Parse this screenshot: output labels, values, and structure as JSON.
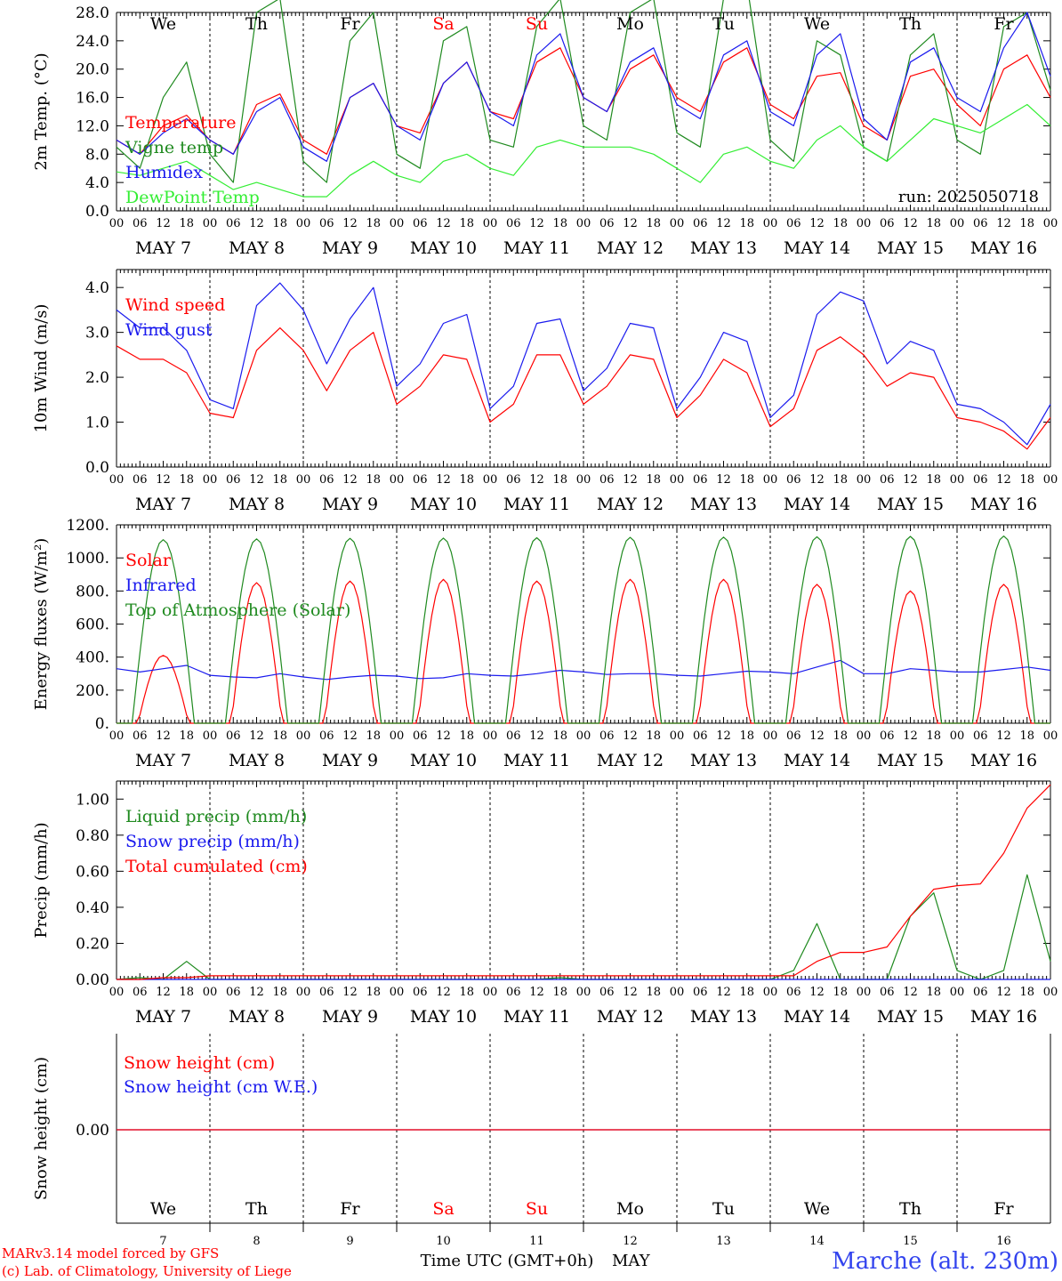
{
  "colors": {
    "red": "#ff0000",
    "green": "#1f8a1f",
    "blue": "#1a1aee",
    "lightgreen": "#33ee33",
    "axis": "#000000"
  },
  "run_label": "run: 2025050718",
  "x_axis": {
    "hour_labels": [
      "00",
      "06",
      "12",
      "18"
    ],
    "dates": [
      "MAY  7",
      "MAY  8",
      "MAY  9",
      "MAY 10",
      "MAY 11",
      "MAY 12",
      "MAY 13",
      "MAY 14",
      "MAY 15",
      "MAY 16"
    ],
    "weekdays": [
      "We",
      "Th",
      "Fr",
      "Sa",
      "Su",
      "Mo",
      "Tu",
      "We",
      "Th",
      "Fr"
    ],
    "weekend_color": [
      "#000",
      "#000",
      "#000",
      "#ff0000",
      "#ff0000",
      "#000",
      "#000",
      "#000",
      "#000",
      "#000"
    ],
    "day_numbers": [
      "7",
      "8",
      "9",
      "10",
      "11",
      "12",
      "13",
      "14",
      "15",
      "16"
    ],
    "title": "Time UTC (GMT+0h)",
    "month": "MAY"
  },
  "footer": {
    "model": "MARv3.14 model forced by GFS",
    "lab": "(c) Lab. of Climatology, University of Liege",
    "station": "Marche (alt. 230m)"
  },
  "chart_data": [
    {
      "type": "line",
      "ylabel": "2m Temp. (°C)",
      "ylim": [
        0,
        28
      ],
      "yticks": [
        "0.0",
        "4.0",
        "8.0",
        "12.0",
        "16.0",
        "20.0",
        "24.0",
        "28.0"
      ],
      "x_hours_from_may7_00": [
        0,
        6,
        12,
        18,
        24,
        30,
        36,
        42,
        48,
        54,
        60,
        66,
        72,
        78,
        84,
        90,
        96,
        102,
        108,
        114,
        120,
        126,
        132,
        138,
        144,
        150,
        156,
        162,
        168,
        174,
        180,
        186,
        192,
        198,
        204,
        210,
        216,
        222,
        228,
        234,
        240
      ],
      "series": [
        {
          "name": "Temperature",
          "color": "red",
          "values": [
            10,
            8,
            12,
            13.5,
            10,
            8,
            15,
            16.5,
            10,
            8,
            16,
            18,
            12,
            11,
            18,
            21,
            14,
            13,
            21,
            23,
            16,
            14,
            20,
            22,
            16,
            14,
            21,
            23,
            15,
            13,
            19,
            19.5,
            12,
            10,
            19,
            20,
            15,
            12,
            20,
            22,
            16
          ]
        },
        {
          "name": "Vigne temp",
          "color": "green",
          "values": [
            9,
            6,
            16,
            21,
            8,
            4,
            28,
            30,
            7,
            4,
            24,
            28,
            8,
            6,
            24,
            26,
            10,
            9,
            26,
            30,
            12,
            10,
            28,
            30,
            11,
            9,
            30,
            32,
            10,
            7,
            24,
            22,
            9,
            7,
            22,
            25,
            10,
            8,
            26,
            28,
            17
          ]
        },
        {
          "name": "Humidex",
          "color": "blue",
          "values": [
            10,
            8,
            11,
            13,
            10,
            8,
            14,
            16,
            9,
            7,
            16,
            18,
            12,
            10,
            18,
            21,
            14,
            12,
            22,
            25,
            16,
            14,
            21,
            23,
            15,
            13,
            22,
            24,
            14,
            12,
            22,
            25,
            13,
            10,
            21,
            23,
            16,
            14,
            23,
            28,
            19
          ]
        },
        {
          "name": "DewPoint Temp",
          "color": "lightgreen",
          "values": [
            5.5,
            5,
            6,
            7,
            5,
            3,
            4,
            3,
            2,
            2,
            5,
            7,
            5,
            4,
            7,
            8,
            6,
            5,
            9,
            10,
            9,
            9,
            9,
            8,
            6,
            4,
            8,
            9,
            7,
            6,
            10,
            12,
            9,
            7,
            10,
            13,
            12,
            11,
            13,
            15,
            12
          ]
        }
      ]
    },
    {
      "type": "line",
      "ylabel": "10m Wind (m/s)",
      "ylim": [
        0,
        4.4
      ],
      "yticks": [
        "0.0",
        "1.0",
        "2.0",
        "3.0",
        "4.0"
      ],
      "x_hours_from_may7_00": [
        0,
        6,
        12,
        18,
        24,
        30,
        36,
        42,
        48,
        54,
        60,
        66,
        72,
        78,
        84,
        90,
        96,
        102,
        108,
        114,
        120,
        126,
        132,
        138,
        144,
        150,
        156,
        162,
        168,
        174,
        180,
        186,
        192,
        198,
        204,
        210,
        216,
        222,
        228,
        234,
        240
      ],
      "series": [
        {
          "name": "Wind speed",
          "color": "red",
          "values": [
            2.7,
            2.4,
            2.4,
            2.1,
            1.2,
            1.1,
            2.6,
            3.1,
            2.6,
            1.7,
            2.6,
            3.0,
            1.4,
            1.8,
            2.5,
            2.4,
            1.0,
            1.4,
            2.5,
            2.5,
            1.4,
            1.8,
            2.5,
            2.4,
            1.1,
            1.6,
            2.4,
            2.1,
            0.9,
            1.3,
            2.6,
            2.9,
            2.5,
            1.8,
            2.1,
            2.0,
            1.1,
            1.0,
            0.8,
            0.4,
            1.1
          ]
        },
        {
          "name": "Wind gust",
          "color": "blue",
          "values": [
            3.5,
            3.1,
            3.1,
            2.6,
            1.5,
            1.3,
            3.6,
            4.1,
            3.5,
            2.3,
            3.3,
            4.0,
            1.8,
            2.3,
            3.2,
            3.4,
            1.3,
            1.8,
            3.2,
            3.3,
            1.7,
            2.2,
            3.2,
            3.1,
            1.3,
            2.0,
            3.0,
            2.8,
            1.1,
            1.6,
            3.4,
            3.9,
            3.7,
            2.3,
            2.8,
            2.6,
            1.4,
            1.3,
            1.0,
            0.5,
            1.4
          ]
        }
      ]
    },
    {
      "type": "line",
      "ylabel": "Energy fluxes (W/m²)",
      "ylim": [
        0,
        1200
      ],
      "yticks": [
        "0.",
        "200.",
        "400.",
        "600.",
        "800.",
        "1000.",
        "1200."
      ],
      "x_hours_from_may7_00": [
        0,
        6,
        12,
        18,
        24,
        30,
        36,
        42,
        48,
        54,
        60,
        66,
        72,
        78,
        84,
        90,
        96,
        102,
        108,
        114,
        120,
        126,
        132,
        138,
        144,
        150,
        156,
        162,
        168,
        174,
        180,
        186,
        192,
        198,
        204,
        210,
        216,
        222,
        228,
        234,
        240
      ],
      "series": [
        {
          "name": "Solar",
          "color": "red",
          "peaks": [
            410,
            850,
            860,
            870,
            860,
            870,
            870,
            840,
            800,
            840
          ]
        },
        {
          "name": "Infrared",
          "color": "blue",
          "values": [
            330,
            310,
            330,
            350,
            290,
            280,
            275,
            300,
            280,
            265,
            280,
            290,
            285,
            270,
            275,
            300,
            290,
            285,
            300,
            320,
            310,
            295,
            300,
            300,
            290,
            285,
            300,
            315,
            310,
            300,
            340,
            380,
            300,
            300,
            330,
            320,
            310,
            310,
            325,
            340,
            320
          ]
        },
        {
          "name": "Top of Atmosphere (Solar)",
          "color": "green",
          "peaks": [
            1110,
            1115,
            1118,
            1120,
            1122,
            1124,
            1126,
            1128,
            1130,
            1132
          ]
        }
      ]
    },
    {
      "type": "line",
      "ylabel": "Precip (mm/h)",
      "ylim": [
        0,
        1.1
      ],
      "yticks": [
        "0.00",
        "0.20",
        "0.40",
        "0.60",
        "0.80",
        "1.00"
      ],
      "x_hours_from_may7_00": [
        0,
        6,
        12,
        18,
        24,
        30,
        36,
        42,
        48,
        54,
        60,
        66,
        72,
        78,
        84,
        90,
        96,
        102,
        108,
        114,
        120,
        126,
        132,
        138,
        144,
        150,
        156,
        162,
        168,
        174,
        180,
        186,
        192,
        198,
        204,
        210,
        216,
        222,
        228,
        234,
        240
      ],
      "series": [
        {
          "name": "Liquid precip (mm/h)",
          "color": "green",
          "values": [
            0,
            0.01,
            0,
            0.1,
            0,
            0,
            0,
            0,
            0,
            0,
            0,
            0,
            0,
            0,
            0,
            0,
            0,
            0,
            0,
            0.01,
            0,
            0,
            0,
            0,
            0,
            0,
            0,
            0,
            0,
            0.05,
            0.31,
            0,
            0,
            0,
            0.35,
            0.48,
            0.05,
            0,
            0.05,
            0.58,
            0.1
          ]
        },
        {
          "name": "Snow precip (mm/h)",
          "color": "blue",
          "values": [
            0,
            0,
            0,
            0,
            0,
            0,
            0,
            0,
            0,
            0,
            0,
            0,
            0,
            0,
            0,
            0,
            0,
            0,
            0,
            0,
            0,
            0,
            0,
            0,
            0,
            0,
            0,
            0,
            0,
            0,
            0,
            0,
            0,
            0,
            0,
            0,
            0,
            0,
            0,
            0,
            0
          ]
        },
        {
          "name": "Total cumulated (cm)",
          "color": "red",
          "values": [
            0,
            0,
            0.01,
            0.01,
            0.02,
            0.02,
            0.02,
            0.02,
            0.02,
            0.02,
            0.02,
            0.02,
            0.02,
            0.02,
            0.02,
            0.02,
            0.02,
            0.02,
            0.02,
            0.02,
            0.02,
            0.02,
            0.02,
            0.02,
            0.02,
            0.02,
            0.02,
            0.02,
            0.02,
            0.02,
            0.1,
            0.15,
            0.15,
            0.18,
            0.35,
            0.5,
            0.52,
            0.53,
            0.7,
            0.95,
            1.08
          ]
        }
      ]
    },
    {
      "type": "line",
      "ylabel": "Snow height (cm)",
      "ylim": [
        -1,
        1
      ],
      "yticks": [
        "0.00"
      ],
      "series": [
        {
          "name": "Snow height (cm)",
          "color": "red",
          "values": [
            0,
            0
          ]
        },
        {
          "name": "Snow height (cm W.E.)",
          "color": "blue",
          "values": [
            0,
            0
          ]
        }
      ]
    }
  ]
}
